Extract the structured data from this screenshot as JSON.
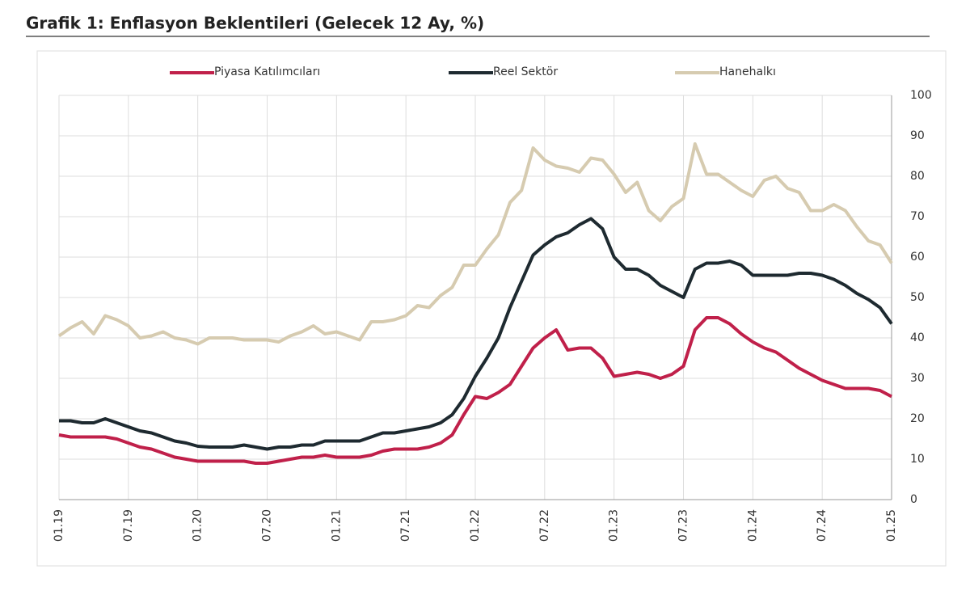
{
  "chart_data": {
    "type": "line",
    "title": "Grafik 1: Enflasyon Beklentileri (Gelecek 12 Ay, %)",
    "categories": [
      "01.19",
      null,
      null,
      null,
      null,
      null,
      "07.19",
      null,
      null,
      null,
      null,
      null,
      "01.20",
      null,
      null,
      null,
      null,
      null,
      "07.20",
      null,
      null,
      null,
      null,
      null,
      "01.21",
      null,
      null,
      null,
      null,
      null,
      "07.21",
      null,
      null,
      null,
      null,
      null,
      "01.22",
      null,
      null,
      null,
      null,
      null,
      "07.22",
      null,
      null,
      null,
      null,
      null,
      "01.23",
      null,
      null,
      null,
      null,
      null,
      "07.23",
      null,
      null,
      null,
      null,
      null,
      "01.24",
      null,
      null,
      null,
      null,
      null,
      "07.24",
      null,
      null,
      null,
      null,
      null,
      "01.25"
    ],
    "series": [
      {
        "name": "Piyasa Katılımcıları",
        "color": "#c0204a",
        "values": [
          16,
          15.5,
          15.5,
          15.5,
          15.5,
          15,
          14,
          13,
          12.5,
          11.5,
          10.5,
          10,
          9.5,
          9.5,
          9.5,
          9.5,
          9.5,
          9,
          9,
          9.5,
          10,
          10.5,
          10.5,
          11,
          10.5,
          10.5,
          10.5,
          11,
          12,
          12.5,
          12.5,
          12.5,
          13,
          14,
          16,
          21,
          25.5,
          25,
          26.5,
          28.5,
          33,
          37.5,
          40,
          42,
          37,
          37.5,
          37.5,
          35,
          30.5,
          31,
          31.5,
          31,
          30,
          31,
          33,
          42,
          45,
          45,
          43.5,
          41,
          39,
          37.5,
          36.5,
          34.5,
          32.5,
          31,
          29.5,
          28.5,
          27.5,
          27.5,
          27.5,
          27,
          25.5
        ]
      },
      {
        "name": "Reel Sektör",
        "color": "#1e2a30",
        "values": [
          19.5,
          19.5,
          19,
          19,
          20,
          19,
          18,
          17,
          16.5,
          15.5,
          14.5,
          14,
          13.2,
          13,
          13,
          13,
          13.5,
          13,
          12.5,
          13,
          13,
          13.5,
          13.5,
          14.5,
          14.5,
          14.5,
          14.5,
          15.5,
          16.5,
          16.5,
          17,
          17.5,
          18,
          19,
          21,
          25,
          30.5,
          35,
          40,
          47.5,
          54,
          60.5,
          63,
          65,
          66,
          68,
          69.5,
          67,
          60,
          57,
          57,
          55.5,
          53,
          51.5,
          50,
          57,
          58.5,
          58.5,
          59,
          58,
          55.5,
          55.5,
          55.5,
          55.5,
          56,
          56,
          55.5,
          54.5,
          53,
          51,
          49.5,
          47.5,
          43.5
        ]
      },
      {
        "name": "Hanehalkı",
        "color": "#d6cbb0",
        "values": [
          40.5,
          42.5,
          44,
          41,
          45.5,
          44.5,
          43,
          40,
          40.5,
          41.5,
          40,
          39.5,
          38.5,
          40,
          40,
          40,
          39.5,
          39.5,
          39.5,
          39,
          40.5,
          41.5,
          43,
          41,
          41.5,
          40.5,
          39.5,
          44,
          44,
          44.5,
          45.5,
          48,
          47.5,
          50.5,
          52.5,
          58,
          58,
          62,
          65.5,
          73.5,
          76.5,
          87,
          84,
          82.5,
          82,
          81,
          84.5,
          84,
          80.5,
          76,
          78.5,
          71.5,
          69,
          72.5,
          74.5,
          88,
          80.5,
          80.5,
          78.5,
          76.5,
          75,
          79,
          80,
          77,
          76,
          71.5,
          71.5,
          73,
          71.5,
          67.5,
          64,
          63,
          58.5
        ]
      }
    ],
    "ylim": [
      0,
      100
    ],
    "yticks": [
      0,
      10,
      20,
      30,
      40,
      50,
      60,
      70,
      80,
      90,
      100
    ],
    "grid": true
  }
}
